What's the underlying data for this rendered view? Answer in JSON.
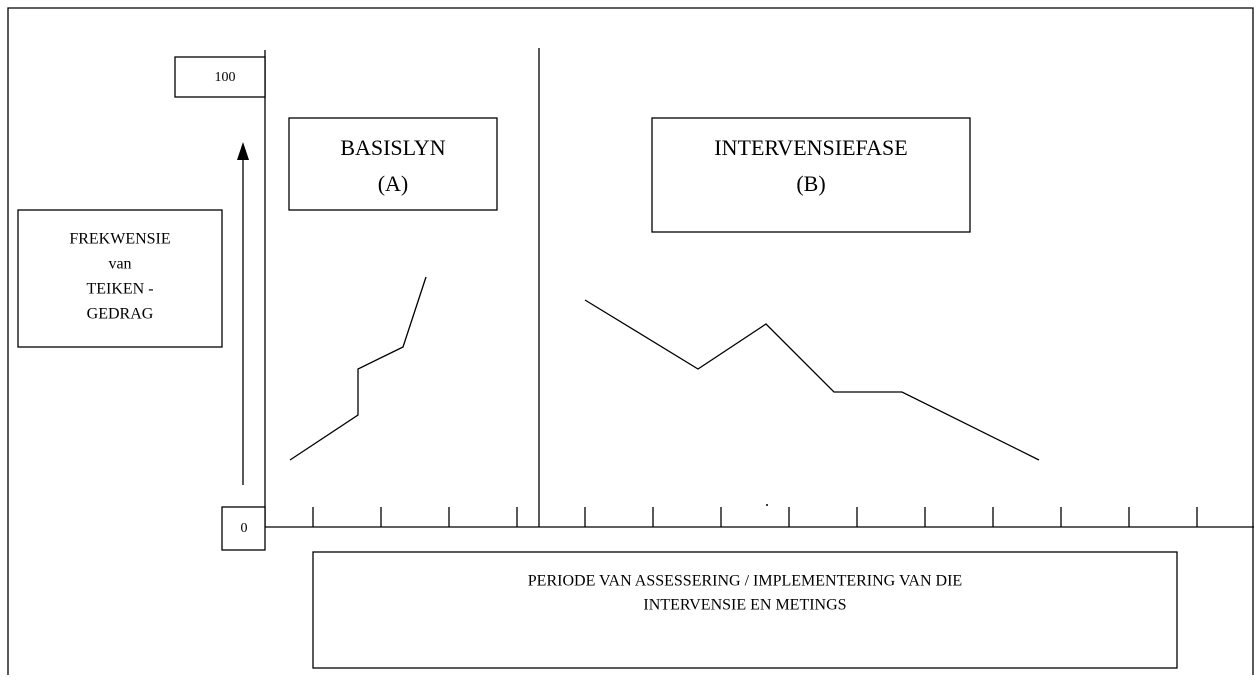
{
  "axis": {
    "max_label": "100",
    "min_label": "0"
  },
  "y_label": {
    "lines": [
      "FREKWENSIE",
      "van",
      "TEIKEN -",
      "GEDRAG"
    ]
  },
  "phases": [
    {
      "title": "BASISLYN",
      "code": "(A)"
    },
    {
      "title": "INTERVENSIEFASE",
      "code": "(B)"
    }
  ],
  "x_label": {
    "lines": [
      "PERIODE VAN ASSESSERING /  IMPLEMENTERING VAN  DIE",
      "INTERVENSIE EN METINGS"
    ]
  }
}
